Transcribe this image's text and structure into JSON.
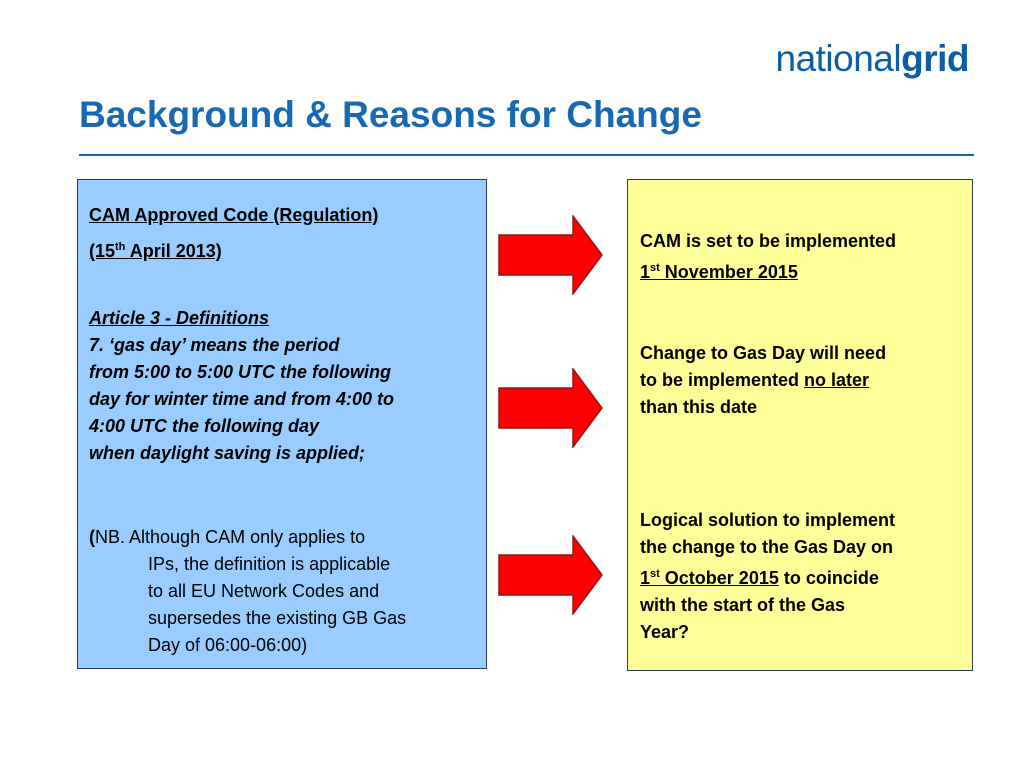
{
  "logo": {
    "prefix": "national",
    "suffix": "grid"
  },
  "slide": {
    "title": "Background & Reasons for Change"
  },
  "left_box": {
    "regulation_title": "CAM Approved Code (Regulation)",
    "date_open": "(15",
    "date_sup": "th",
    "date_rest": " April 2013)",
    "article_heading": "Article 3 - Definitions",
    "article_lines": [
      "7. ‘gas day’ means the period",
      "from 5:00 to 5:00 UTC the following",
      "day for winter time and from 4:00 to",
      "4:00 UTC the following day",
      "when daylight saving is applied;"
    ],
    "nb_open": "(",
    "nb_first_line": "NB. Although CAM only applies to",
    "nb_lines": [
      "IPs, the definition is applicable",
      "to all EU Network Codes and",
      "supersedes the existing GB Gas",
      "Day of 06:00-06:00)"
    ]
  },
  "right_box": {
    "p1_line1": "CAM is set to be implemented",
    "p1_num": "1",
    "p1_sup": "st",
    "p1_date_rest": " November 2015",
    "p2_line1": "Change to Gas Day will need",
    "p2_line2_pre": "to be implemented ",
    "p2_line2_ul": "no later",
    "p2_line3": "than this date",
    "p3_line1": "Logical solution to implement",
    "p3_line2": "the change to the Gas Day on",
    "p3_num": "1",
    "p3_sup": "st",
    "p3_date_rest": " October 2015",
    "p3_line3_post": " to coincide",
    "p3_line4": "with the start of the Gas",
    "p3_line5": "Year?"
  },
  "arrows": {
    "fill": "#ff0000",
    "stroke": "#8b1a1a",
    "count": 3
  }
}
